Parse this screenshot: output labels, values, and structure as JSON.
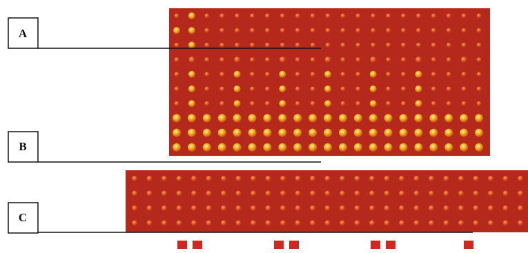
{
  "labels": [
    {
      "text": "A"
    },
    {
      "text": "B"
    },
    {
      "text": "C"
    }
  ]
}
